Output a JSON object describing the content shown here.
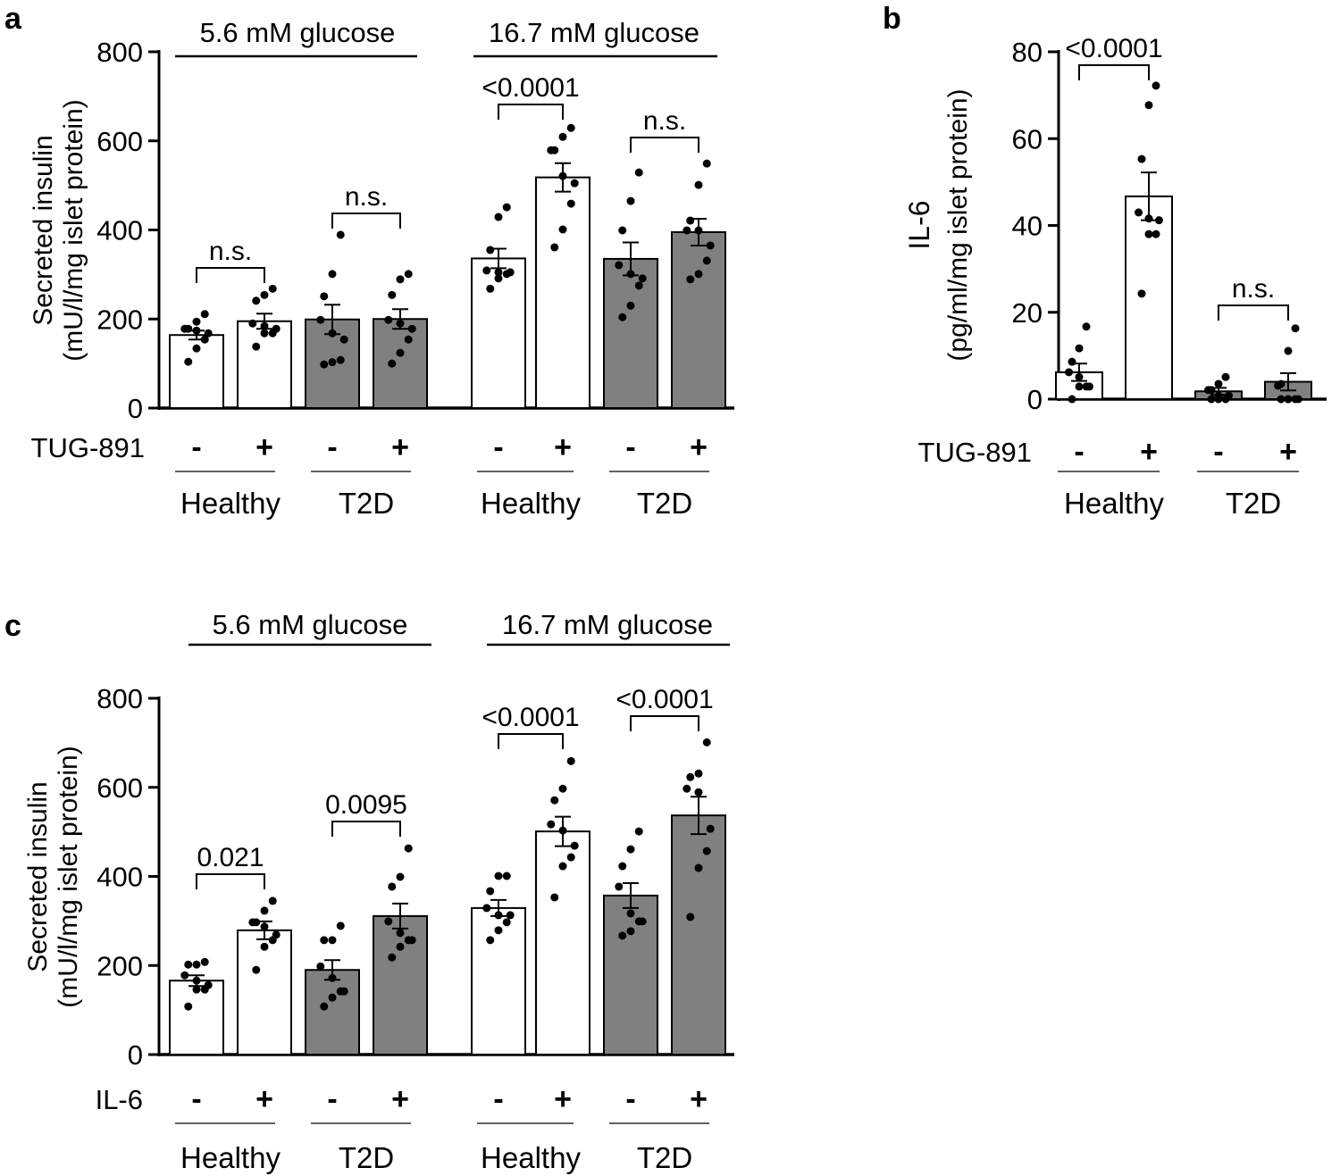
{
  "colors": {
    "healthy_fill": "#ffffff",
    "t2d_fill": "#808080",
    "stroke": "#000000"
  },
  "chart_data": [
    {
      "type": "bar",
      "panel_label": "a",
      "ylabel": [
        "Secreted insulin",
        "(mU/l/mg islet protein)"
      ],
      "ylim": [
        0,
        800
      ],
      "yticks": [
        "0",
        "200",
        "400",
        "600",
        "800"
      ],
      "ytick_values": [
        0,
        200,
        400,
        600,
        800
      ],
      "glucose_groups": [
        "5.6 mM glucose",
        "16.7 mM glucose"
      ],
      "treatment_label": "TUG-891",
      "treatment_signs": [
        "-",
        "+",
        "-",
        "+",
        "-",
        "+",
        "-",
        "+"
      ],
      "donor_groups": [
        "Healthy",
        "T2D",
        "Healthy",
        "T2D"
      ],
      "bars": [
        {
          "donor": "Healthy",
          "glucose": "5.6",
          "treated": false,
          "fill": "healthy",
          "mean": 164,
          "sem": 10,
          "points": [
            211,
            194,
            178,
            178,
            174,
            168,
            154,
            134,
            104
          ]
        },
        {
          "donor": "Healthy",
          "glucose": "5.6",
          "treated": true,
          "fill": "healthy",
          "mean": 195,
          "sem": 17,
          "points": [
            268,
            254,
            241,
            190,
            184,
            178,
            168,
            168,
            138
          ]
        },
        {
          "donor": "T2D",
          "glucose": "5.6",
          "treated": false,
          "fill": "t2d",
          "mean": 199,
          "sem": 33,
          "points": [
            389,
            301,
            251,
            198,
            168,
            154,
            108,
            103,
            98
          ]
        },
        {
          "donor": "T2D",
          "glucose": "5.6",
          "treated": true,
          "fill": "t2d",
          "mean": 200,
          "sem": 22,
          "points": [
            301,
            289,
            254,
            198,
            190,
            178,
            154,
            124,
            100
          ]
        },
        {
          "donor": "Healthy",
          "glucose": "16.7",
          "treated": false,
          "fill": "healthy",
          "mean": 336,
          "sem": 22,
          "points": [
            451,
            429,
            355,
            309,
            305,
            305,
            301,
            291,
            268
          ]
        },
        {
          "donor": "Healthy",
          "glucose": "16.7",
          "treated": true,
          "fill": "healthy",
          "mean": 518,
          "sem": 32,
          "points": [
            629,
            609,
            579,
            579,
            521,
            505,
            459,
            401,
            361
          ]
        },
        {
          "donor": "T2D",
          "glucose": "16.7",
          "treated": false,
          "fill": "t2d",
          "mean": 335,
          "sem": 37,
          "points": [
            529,
            465,
            399,
            321,
            301,
            291,
            275,
            230,
            204
          ]
        },
        {
          "donor": "T2D",
          "glucose": "16.7",
          "treated": true,
          "fill": "t2d",
          "mean": 395,
          "sem": 30,
          "points": [
            549,
            501,
            421,
            399,
            399,
            365,
            331,
            301,
            289
          ]
        }
      ],
      "comparisons": [
        {
          "bars": [
            0,
            1
          ],
          "label": "n.s."
        },
        {
          "bars": [
            2,
            3
          ],
          "label": "n.s."
        },
        {
          "bars": [
            4,
            5
          ],
          "label": "<0.0001"
        },
        {
          "bars": [
            6,
            7
          ],
          "label": "n.s."
        }
      ]
    },
    {
      "type": "bar",
      "panel_label": "b",
      "ylabel": [
        "IL-6",
        "(pg/ml/mg islet protein)"
      ],
      "ylim": [
        0,
        80
      ],
      "yticks": [
        "0",
        "20",
        "40",
        "60",
        "80"
      ],
      "ytick_values": [
        0,
        20,
        40,
        60,
        80
      ],
      "treatment_label": "TUG-891",
      "treatment_signs": [
        "-",
        "+",
        "-",
        "+"
      ],
      "donor_groups": [
        "Healthy",
        "T2D"
      ],
      "bars": [
        {
          "donor": "Healthy",
          "treated": false,
          "fill": "healthy",
          "mean": 6.2,
          "sem": 2,
          "points": [
            16.7,
            11.7,
            8.6,
            6.2,
            5.1,
            2.9,
            2.9,
            2.9,
            0
          ]
        },
        {
          "donor": "Healthy",
          "treated": true,
          "fill": "healthy",
          "mean": 46.7,
          "sem": 5.5,
          "points": [
            72.2,
            67.7,
            55.3,
            43,
            41.6,
            41.2,
            38,
            38,
            24.3
          ]
        },
        {
          "donor": "T2D",
          "treated": false,
          "fill": "t2d",
          "mean": 1.8,
          "sem": 0.8,
          "points": [
            5.1,
            3.5,
            2.1,
            2.1,
            0.8,
            0.8,
            0,
            0,
            0
          ]
        },
        {
          "donor": "T2D",
          "treated": true,
          "fill": "t2d",
          "mean": 4,
          "sem": 2,
          "points": [
            16.3,
            11.1,
            3.5,
            3.1,
            0,
            0,
            0,
            0,
            0
          ]
        }
      ],
      "comparisons": [
        {
          "bars": [
            0,
            1
          ],
          "label": "<0.0001"
        },
        {
          "bars": [
            2,
            3
          ],
          "label": "n.s."
        }
      ]
    },
    {
      "type": "bar",
      "panel_label": "c",
      "ylabel": [
        "Secreted insulin",
        "(mU/l/mg islet protein)"
      ],
      "ylim": [
        0,
        800
      ],
      "yticks": [
        "0",
        "200",
        "400",
        "600",
        "800"
      ],
      "ytick_values": [
        0,
        200,
        400,
        600,
        800
      ],
      "glucose_groups": [
        "5.6 mM glucose",
        "16.7 mM glucose"
      ],
      "treatment_label": "IL-6",
      "treatment_signs": [
        "-",
        "+",
        "-",
        "+",
        "-",
        "+",
        "-",
        "+"
      ],
      "donor_groups": [
        "Healthy",
        "T2D",
        "Healthy",
        "T2D"
      ],
      "bars": [
        {
          "donor": "Healthy",
          "glucose": "5.6",
          "treated": false,
          "fill": "healthy",
          "mean": 166,
          "sem": 12,
          "points": [
            208,
            202,
            202,
            178,
            166,
            156,
            146,
            146,
            108
          ]
        },
        {
          "donor": "Healthy",
          "glucose": "5.6",
          "treated": true,
          "fill": "healthy",
          "mean": 279,
          "sem": 20,
          "points": [
            345,
            323,
            297,
            297,
            287,
            269,
            257,
            242,
            190
          ]
        },
        {
          "donor": "T2D",
          "glucose": "5.6",
          "treated": false,
          "fill": "t2d",
          "mean": 190,
          "sem": 22,
          "points": [
            289,
            257,
            257,
            198,
            172,
            142,
            142,
            128,
            108
          ]
        },
        {
          "donor": "T2D",
          "glucose": "5.6",
          "treated": true,
          "fill": "t2d",
          "mean": 311,
          "sem": 28,
          "points": [
            463,
            399,
            377,
            299,
            273,
            257,
            257,
            242,
            218
          ]
        },
        {
          "donor": "Healthy",
          "glucose": "16.7",
          "treated": false,
          "fill": "healthy",
          "mean": 329,
          "sem": 18,
          "points": [
            401,
            401,
            367,
            329,
            313,
            313,
            297,
            279,
            257
          ]
        },
        {
          "donor": "Healthy",
          "glucose": "16.7",
          "treated": true,
          "fill": "healthy",
          "mean": 501,
          "sem": 33,
          "points": [
            659,
            597,
            571,
            517,
            503,
            469,
            443,
            423,
            353
          ]
        },
        {
          "donor": "T2D",
          "glucose": "16.7",
          "treated": false,
          "fill": "t2d",
          "mean": 357,
          "sem": 28,
          "points": [
            501,
            461,
            423,
            377,
            317,
            299,
            299,
            277,
            267
          ]
        },
        {
          "donor": "T2D",
          "glucose": "16.7",
          "treated": true,
          "fill": "t2d",
          "mean": 537,
          "sem": 42,
          "points": [
            701,
            631,
            623,
            597,
            589,
            507,
            457,
            419,
            309
          ]
        }
      ],
      "comparisons": [
        {
          "bars": [
            0,
            1
          ],
          "label": "0.021"
        },
        {
          "bars": [
            2,
            3
          ],
          "label": "0.0095"
        },
        {
          "bars": [
            4,
            5
          ],
          "label": "<0.0001"
        },
        {
          "bars": [
            6,
            7
          ],
          "label": "<0.0001"
        }
      ]
    }
  ]
}
